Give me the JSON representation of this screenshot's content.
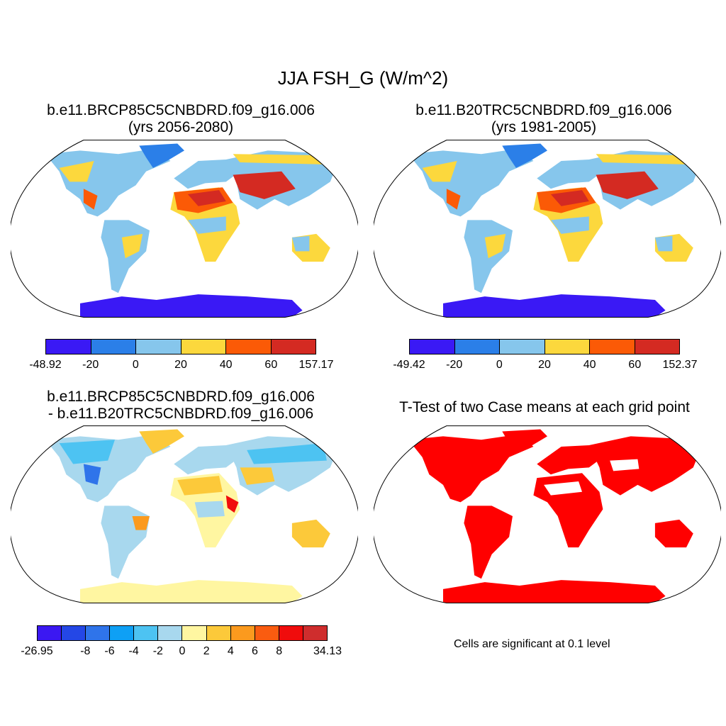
{
  "figure": {
    "title": "JJA FSH_G (W/m^2)"
  },
  "panels": [
    {
      "id": "p1",
      "title_line1": "b.e11.BRCP85C5CNBDRD.f09_g16.006",
      "title_line2": "(yrs 2056-2080)"
    },
    {
      "id": "p2",
      "title_line1": "b.e11.B20TRC5CNBDRD.f09_g16.006",
      "title_line2": "(yrs 1981-2005)"
    },
    {
      "id": "p3",
      "title_line1": "b.e11.BRCP85C5CNBDRD.f09_g16.006",
      "title_line2": "- b.e11.B20TRC5CNBDRD.f09_g16.006"
    },
    {
      "id": "p4",
      "title_line1": "T-Test of two Case means at each grid point",
      "title_line2": ""
    }
  ],
  "colorbars": {
    "top_left": {
      "colors": [
        "#3a19f5",
        "#2b7fe8",
        "#86c6ec",
        "#fcd83d",
        "#fb5a06",
        "#d42a22"
      ],
      "labels": [
        "-48.92",
        "-20",
        "0",
        "20",
        "40",
        "60",
        "157.17"
      ]
    },
    "top_right": {
      "colors": [
        "#3a19f5",
        "#2b7fe8",
        "#86c6ec",
        "#fcd83d",
        "#fb5a06",
        "#d42a22"
      ],
      "labels": [
        "-49.42",
        "-20",
        "0",
        "20",
        "40",
        "60",
        "152.37"
      ]
    },
    "bottom_left": {
      "colors": [
        "#3b18f2",
        "#2447e6",
        "#2f74ea",
        "#0ea0f5",
        "#4dc3f2",
        "#a8d8ee",
        "#fff6a1",
        "#fcc93a",
        "#fb9a1e",
        "#fa5c10",
        "#f00c0c",
        "#cf2d2d"
      ],
      "labels": [
        "-26.95",
        "-8",
        "-6",
        "-4",
        "-2",
        "0",
        "2",
        "4",
        "6",
        "8",
        "34.13"
      ]
    }
  },
  "significance_note": "Cells are significant at 0.1 level",
  "map_colors": {
    "ocean": "#ffffff",
    "antarctica_abs": "#3a19f5",
    "antarctica_diff": "#fbe79a",
    "significant": "#ff0000",
    "hot": "#d42a22",
    "orange": "#fb5a06",
    "yellow": "#fcd83d",
    "lightblue": "#86c6ec",
    "blue": "#2b7fe8"
  },
  "chart_data": [
    {
      "type": "map",
      "title": "b.e11.BRCP85C5CNBDRD.f09_g16.006 (yrs 2056-2080)",
      "variable": "JJA FSH_G",
      "units": "W/m^2",
      "range": [
        -48.92,
        157.17
      ],
      "levels": [
        -20,
        0,
        20,
        40,
        60
      ]
    },
    {
      "type": "map",
      "title": "b.e11.B20TRC5CNBDRD.f09_g16.006 (yrs 1981-2005)",
      "variable": "JJA FSH_G",
      "units": "W/m^2",
      "range": [
        -49.42,
        152.37
      ],
      "levels": [
        -20,
        0,
        20,
        40,
        60
      ]
    },
    {
      "type": "map",
      "title": "b.e11.BRCP85C5CNBDRD.f09_g16.006 - b.e11.B20TRC5CNBDRD.f09_g16.006",
      "variable": "JJA FSH_G difference",
      "units": "W/m^2",
      "range": [
        -26.95,
        34.13
      ],
      "levels": [
        -8,
        -6,
        -4,
        -2,
        0,
        2,
        4,
        6,
        8
      ]
    },
    {
      "type": "map",
      "title": "T-Test of two Case means at each grid point",
      "note": "Cells are significant at 0.1 level"
    }
  ]
}
